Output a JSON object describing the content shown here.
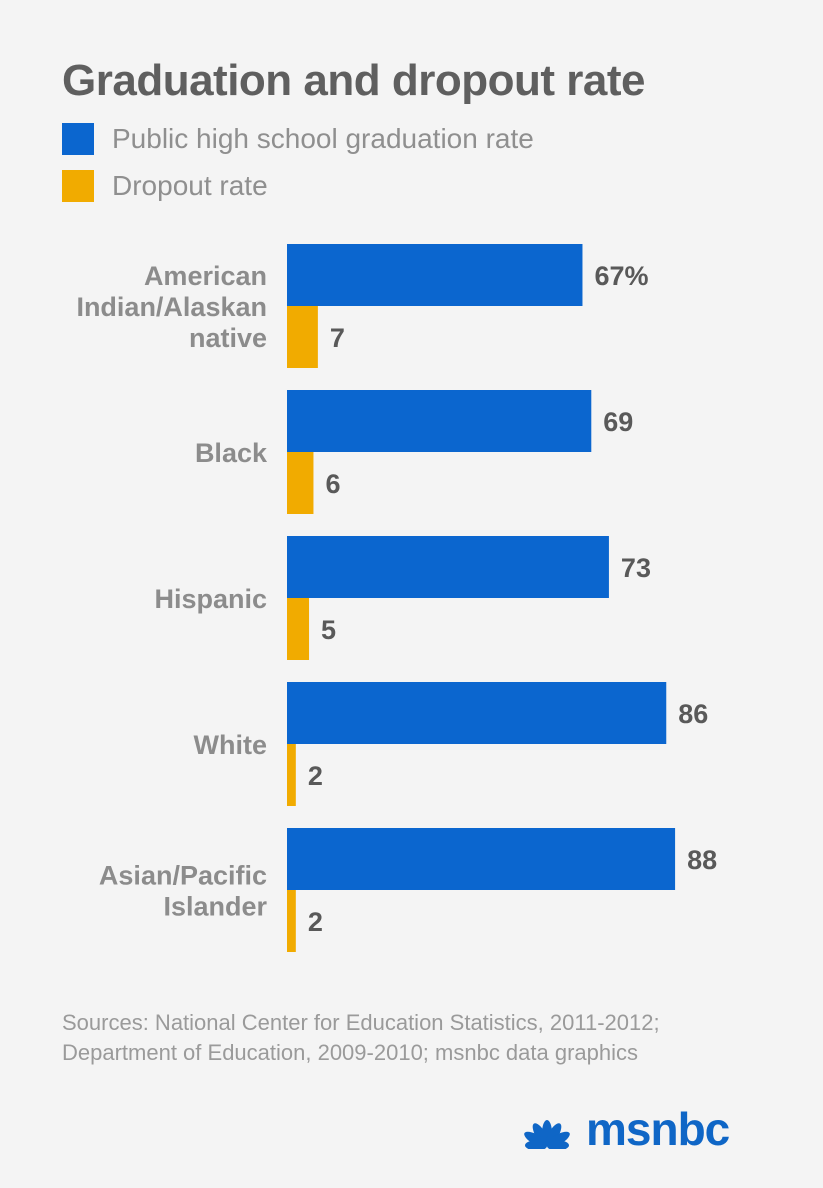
{
  "title": "Graduation and dropout rate",
  "legend": [
    {
      "label": "Public high school graduation rate",
      "color": "#0b66cf"
    },
    {
      "label": "Dropout rate",
      "color": "#f1ab00"
    }
  ],
  "chart_data": {
    "type": "bar",
    "orientation": "horizontal",
    "title": "Graduation and dropout rate",
    "categories": [
      [
        "American",
        "Indian/Alaskan",
        "native"
      ],
      [
        "Black"
      ],
      [
        "Hispanic"
      ],
      [
        "White"
      ],
      [
        "Asian/Pacific",
        "Islander"
      ]
    ],
    "series": [
      {
        "name": "Public high school graduation rate",
        "color": "#0b66cf",
        "values": [
          67,
          69,
          73,
          86,
          88
        ],
        "labels": [
          "67%",
          "69",
          "73",
          "86",
          "88"
        ]
      },
      {
        "name": "Dropout rate",
        "color": "#f1ab00",
        "values": [
          7,
          6,
          5,
          2,
          2
        ],
        "labels": [
          "7",
          "6",
          "5",
          "2",
          "2"
        ]
      }
    ],
    "xlim": [
      0,
      100
    ],
    "xlabel": "",
    "ylabel": "",
    "grid": false
  },
  "source": {
    "lines": [
      "Sources: National Center for Education Statistics, 2011-2012;",
      "Department of Education, 2009-2010; msnbc data graphics"
    ]
  },
  "logo": {
    "text": "msnbc",
    "icon": "nbc-peacock-icon",
    "color": "#0f66c6"
  }
}
